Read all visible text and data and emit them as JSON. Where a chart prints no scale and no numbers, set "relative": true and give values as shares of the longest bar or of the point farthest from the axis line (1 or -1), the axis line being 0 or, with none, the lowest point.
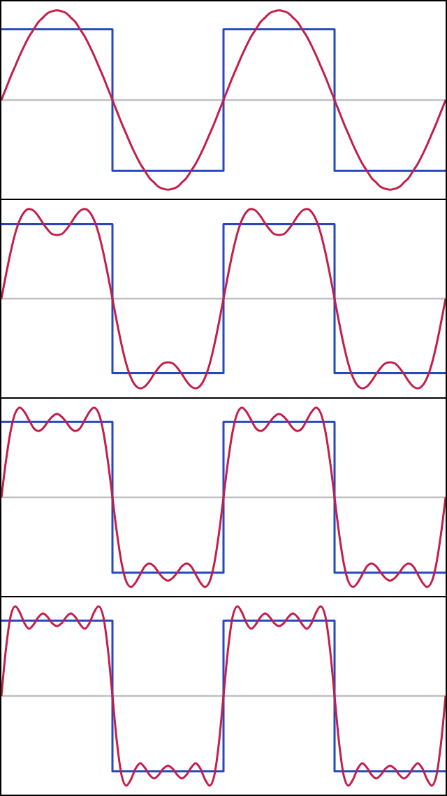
{
  "chart_data": [
    {
      "type": "line",
      "relative": true,
      "marker": "none",
      "categories": [
        null,
        null,
        null,
        null,
        null,
        null,
        null,
        null,
        null,
        null,
        null,
        null,
        null,
        null,
        null,
        null,
        null,
        null,
        null,
        null,
        null,
        null,
        null,
        null,
        null,
        null,
        null,
        null,
        null,
        null,
        null,
        null,
        null,
        null,
        null,
        null,
        null,
        null,
        null,
        null,
        null,
        null,
        null,
        null,
        null,
        null,
        null,
        null,
        null,
        null,
        null,
        null,
        null,
        null,
        null,
        null,
        null,
        null,
        null,
        null,
        null,
        null,
        null,
        null,
        null,
        null,
        null,
        null,
        null,
        null,
        null,
        null,
        null,
        null,
        null,
        null,
        null,
        null,
        null,
        null,
        null,
        null,
        null,
        null,
        null,
        null,
        null,
        null,
        null,
        null,
        null,
        null,
        null,
        null,
        null,
        null,
        null
      ],
      "ref_lines": [
        {
          "axis": "y",
          "value": 0,
          "color": "#c0c0c0"
        }
      ],
      "series": [
        {
          "type": "step",
          "color": "#2547c0",
          "values": [
            0.79,
            0.79,
            0.79,
            0.79,
            0.79,
            0.79,
            0.79,
            0.79,
            0.79,
            0.79,
            0.79,
            0.79,
            0.79,
            0.79,
            0.79,
            0.79,
            0.79,
            0.79,
            0.79,
            0.79,
            0.79,
            0.79,
            0.79,
            0.79,
            -0.79,
            -0.79,
            -0.79,
            -0.79,
            -0.79,
            -0.79,
            -0.79,
            -0.79,
            -0.79,
            -0.79,
            -0.79,
            -0.79,
            -0.79,
            -0.79,
            -0.79,
            -0.79,
            -0.79,
            -0.79,
            -0.79,
            -0.79,
            -0.79,
            -0.79,
            -0.79,
            -0.79,
            0.79,
            0.79,
            0.79,
            0.79,
            0.79,
            0.79,
            0.79,
            0.79,
            0.79,
            0.79,
            0.79,
            0.79,
            0.79,
            0.79,
            0.79,
            0.79,
            0.79,
            0.79,
            0.79,
            0.79,
            0.79,
            0.79,
            0.79,
            0.79,
            -0.79,
            -0.79,
            -0.79,
            -0.79,
            -0.79,
            -0.79,
            -0.79,
            -0.79,
            -0.79,
            -0.79,
            -0.79,
            -0.79,
            -0.79,
            -0.79,
            -0.79,
            -0.79,
            -0.79,
            -0.79,
            -0.79,
            -0.79,
            -0.79,
            -0.79,
            -0.79,
            -0.79,
            -0.79
          ]
        },
        {
          "type": "line",
          "color": "#c41e4a",
          "values": [
            0,
            0.13,
            0.26,
            0.38,
            0.5,
            0.61,
            0.71,
            0.79,
            0.87,
            0.92,
            0.97,
            0.99,
            1,
            0.99,
            0.97,
            0.92,
            0.87,
            0.79,
            0.71,
            0.61,
            0.5,
            0.38,
            0.26,
            0.13,
            0,
            -0.13,
            -0.26,
            -0.38,
            -0.5,
            -0.61,
            -0.71,
            -0.79,
            -0.87,
            -0.92,
            -0.97,
            -0.99,
            -1,
            -0.99,
            -0.97,
            -0.92,
            -0.87,
            -0.79,
            -0.71,
            -0.61,
            -0.5,
            -0.38,
            -0.26,
            -0.13,
            0,
            0.13,
            0.26,
            0.38,
            0.5,
            0.61,
            0.71,
            0.79,
            0.87,
            0.92,
            0.97,
            0.99,
            1,
            0.99,
            0.97,
            0.92,
            0.87,
            0.79,
            0.71,
            0.61,
            0.5,
            0.38,
            0.26,
            0.13,
            0,
            -0.13,
            -0.26,
            -0.38,
            -0.5,
            -0.61,
            -0.71,
            -0.79,
            -0.87,
            -0.92,
            -0.97,
            -0.99,
            -1,
            -0.99,
            -0.97,
            -0.92,
            -0.87,
            -0.79,
            -0.71,
            -0.61,
            -0.5,
            -0.38,
            -0.26,
            -0.13,
            0
          ]
        }
      ]
    },
    {
      "type": "line",
      "relative": true,
      "marker": "none",
      "categories": [
        null,
        null,
        null,
        null,
        null,
        null,
        null,
        null,
        null,
        null,
        null,
        null,
        null,
        null,
        null,
        null,
        null,
        null,
        null,
        null,
        null,
        null,
        null,
        null,
        null,
        null,
        null,
        null,
        null,
        null,
        null,
        null,
        null,
        null,
        null,
        null,
        null,
        null,
        null,
        null,
        null,
        null,
        null,
        null,
        null,
        null,
        null,
        null,
        null,
        null,
        null,
        null,
        null,
        null,
        null,
        null,
        null,
        null,
        null,
        null,
        null,
        null,
        null,
        null,
        null,
        null,
        null,
        null,
        null,
        null,
        null,
        null,
        null,
        null,
        null,
        null,
        null,
        null,
        null,
        null,
        null,
        null,
        null,
        null,
        null,
        null,
        null,
        null,
        null,
        null,
        null,
        null,
        null,
        null,
        null,
        null,
        null
      ],
      "ref_lines": [
        {
          "axis": "y",
          "value": 0,
          "color": "#c0c0c0"
        }
      ],
      "series": [
        {
          "type": "step",
          "color": "#2547c0",
          "values": [
            0.83,
            0.83,
            0.83,
            0.83,
            0.83,
            0.83,
            0.83,
            0.83,
            0.83,
            0.83,
            0.83,
            0.83,
            0.83,
            0.83,
            0.83,
            0.83,
            0.83,
            0.83,
            0.83,
            0.83,
            0.83,
            0.83,
            0.83,
            0.83,
            -0.83,
            -0.83,
            -0.83,
            -0.83,
            -0.83,
            -0.83,
            -0.83,
            -0.83,
            -0.83,
            -0.83,
            -0.83,
            -0.83,
            -0.83,
            -0.83,
            -0.83,
            -0.83,
            -0.83,
            -0.83,
            -0.83,
            -0.83,
            -0.83,
            -0.83,
            -0.83,
            -0.83,
            0.83,
            0.83,
            0.83,
            0.83,
            0.83,
            0.83,
            0.83,
            0.83,
            0.83,
            0.83,
            0.83,
            0.83,
            0.83,
            0.83,
            0.83,
            0.83,
            0.83,
            0.83,
            0.83,
            0.83,
            0.83,
            0.83,
            0.83,
            0.83,
            -0.83,
            -0.83,
            -0.83,
            -0.83,
            -0.83,
            -0.83,
            -0.83,
            -0.83,
            -0.83,
            -0.83,
            -0.83,
            -0.83,
            -0.83,
            -0.83,
            -0.83,
            -0.83,
            -0.83,
            -0.83,
            -0.83,
            -0.83,
            -0.83,
            -0.83,
            -0.83,
            -0.83,
            -0.83
          ]
        },
        {
          "type": "line",
          "color": "#c41e4a",
          "values": [
            0,
            0.27,
            0.52,
            0.73,
            0.88,
            0.97,
            1,
            0.98,
            0.92,
            0.84,
            0.77,
            0.72,
            0.71,
            0.72,
            0.77,
            0.84,
            0.92,
            0.98,
            1,
            0.97,
            0.88,
            0.73,
            0.52,
            0.27,
            0,
            -0.27,
            -0.52,
            -0.73,
            -0.88,
            -0.97,
            -1,
            -0.98,
            -0.92,
            -0.84,
            -0.77,
            -0.72,
            -0.71,
            -0.72,
            -0.77,
            -0.84,
            -0.92,
            -0.98,
            -1,
            -0.97,
            -0.88,
            -0.73,
            -0.52,
            -0.27,
            0,
            0.27,
            0.52,
            0.73,
            0.88,
            0.97,
            1,
            0.98,
            0.92,
            0.84,
            0.77,
            0.72,
            0.71,
            0.72,
            0.77,
            0.84,
            0.92,
            0.98,
            1,
            0.97,
            0.88,
            0.73,
            0.52,
            0.27,
            0,
            -0.27,
            -0.52,
            -0.73,
            -0.88,
            -0.97,
            -1,
            -0.98,
            -0.92,
            -0.84,
            -0.77,
            -0.72,
            -0.71,
            -0.72,
            -0.77,
            -0.84,
            -0.92,
            -0.98,
            -1,
            -0.97,
            -0.88,
            -0.73,
            -0.52,
            -0.27,
            0
          ]
        }
      ]
    },
    {
      "type": "line",
      "relative": true,
      "marker": "none",
      "categories": [
        null,
        null,
        null,
        null,
        null,
        null,
        null,
        null,
        null,
        null,
        null,
        null,
        null,
        null,
        null,
        null,
        null,
        null,
        null,
        null,
        null,
        null,
        null,
        null,
        null,
        null,
        null,
        null,
        null,
        null,
        null,
        null,
        null,
        null,
        null,
        null,
        null,
        null,
        null,
        null,
        null,
        null,
        null,
        null,
        null,
        null,
        null,
        null,
        null,
        null,
        null,
        null,
        null,
        null,
        null,
        null,
        null,
        null,
        null,
        null,
        null,
        null,
        null,
        null,
        null,
        null,
        null,
        null,
        null,
        null,
        null,
        null,
        null,
        null,
        null,
        null,
        null,
        null,
        null,
        null,
        null,
        null,
        null,
        null,
        null,
        null,
        null,
        null,
        null,
        null,
        null,
        null,
        null,
        null,
        null,
        null,
        null
      ],
      "ref_lines": [
        {
          "axis": "y",
          "value": 0,
          "color": "#c0c0c0"
        }
      ],
      "series": [
        {
          "type": "step",
          "color": "#2547c0",
          "values": [
            0.84,
            0.84,
            0.84,
            0.84,
            0.84,
            0.84,
            0.84,
            0.84,
            0.84,
            0.84,
            0.84,
            0.84,
            0.84,
            0.84,
            0.84,
            0.84,
            0.84,
            0.84,
            0.84,
            0.84,
            0.84,
            0.84,
            0.84,
            0.84,
            -0.84,
            -0.84,
            -0.84,
            -0.84,
            -0.84,
            -0.84,
            -0.84,
            -0.84,
            -0.84,
            -0.84,
            -0.84,
            -0.84,
            -0.84,
            -0.84,
            -0.84,
            -0.84,
            -0.84,
            -0.84,
            -0.84,
            -0.84,
            -0.84,
            -0.84,
            -0.84,
            -0.84,
            0.84,
            0.84,
            0.84,
            0.84,
            0.84,
            0.84,
            0.84,
            0.84,
            0.84,
            0.84,
            0.84,
            0.84,
            0.84,
            0.84,
            0.84,
            0.84,
            0.84,
            0.84,
            0.84,
            0.84,
            0.84,
            0.84,
            0.84,
            0.84,
            -0.84,
            -0.84,
            -0.84,
            -0.84,
            -0.84,
            -0.84,
            -0.84,
            -0.84,
            -0.84,
            -0.84,
            -0.84,
            -0.84,
            -0.84,
            -0.84,
            -0.84,
            -0.84,
            -0.84,
            -0.84,
            -0.84,
            -0.84,
            -0.84,
            -0.84,
            -0.84,
            -0.84,
            -0.84
          ]
        },
        {
          "type": "line",
          "color": "#c41e4a",
          "values": [
            0,
            0.41,
            0.74,
            0.94,
            1,
            0.95,
            0.86,
            0.77,
            0.74,
            0.77,
            0.84,
            0.9,
            0.93,
            0.9,
            0.84,
            0.77,
            0.74,
            0.77,
            0.86,
            0.95,
            1,
            0.94,
            0.74,
            0.41,
            0,
            -0.41,
            -0.74,
            -0.94,
            -1,
            -0.95,
            -0.86,
            -0.77,
            -0.74,
            -0.77,
            -0.84,
            -0.9,
            -0.93,
            -0.9,
            -0.84,
            -0.77,
            -0.74,
            -0.77,
            -0.86,
            -0.95,
            -1,
            -0.94,
            -0.74,
            -0.41,
            0,
            0.41,
            0.74,
            0.94,
            1,
            0.95,
            0.86,
            0.77,
            0.74,
            0.77,
            0.84,
            0.9,
            0.93,
            0.9,
            0.84,
            0.77,
            0.74,
            0.77,
            0.86,
            0.95,
            1,
            0.94,
            0.74,
            0.41,
            0,
            -0.41,
            -0.74,
            -0.94,
            -1,
            -0.95,
            -0.86,
            -0.77,
            -0.74,
            -0.77,
            -0.84,
            -0.9,
            -0.93,
            -0.9,
            -0.84,
            -0.77,
            -0.74,
            -0.77,
            -0.86,
            -0.95,
            -1,
            -0.94,
            -0.74,
            -0.41,
            0
          ]
        }
      ]
    },
    {
      "type": "line",
      "relative": true,
      "marker": "none",
      "categories": [
        null,
        null,
        null,
        null,
        null,
        null,
        null,
        null,
        null,
        null,
        null,
        null,
        null,
        null,
        null,
        null,
        null,
        null,
        null,
        null,
        null,
        null,
        null,
        null,
        null,
        null,
        null,
        null,
        null,
        null,
        null,
        null,
        null,
        null,
        null,
        null,
        null,
        null,
        null,
        null,
        null,
        null,
        null,
        null,
        null,
        null,
        null,
        null,
        null,
        null,
        null,
        null,
        null,
        null,
        null,
        null,
        null,
        null,
        null,
        null,
        null,
        null,
        null,
        null,
        null,
        null,
        null,
        null,
        null,
        null,
        null,
        null,
        null,
        null,
        null,
        null,
        null,
        null,
        null,
        null,
        null,
        null,
        null,
        null,
        null,
        null,
        null,
        null,
        null,
        null,
        null,
        null,
        null,
        null,
        null,
        null,
        null
      ],
      "ref_lines": [
        {
          "axis": "y",
          "value": 0,
          "color": "#c0c0c0"
        }
      ],
      "series": [
        {
          "type": "step",
          "color": "#2547c0",
          "values": [
            0.84,
            0.84,
            0.84,
            0.84,
            0.84,
            0.84,
            0.84,
            0.84,
            0.84,
            0.84,
            0.84,
            0.84,
            0.84,
            0.84,
            0.84,
            0.84,
            0.84,
            0.84,
            0.84,
            0.84,
            0.84,
            0.84,
            0.84,
            0.84,
            -0.84,
            -0.84,
            -0.84,
            -0.84,
            -0.84,
            -0.84,
            -0.84,
            -0.84,
            -0.84,
            -0.84,
            -0.84,
            -0.84,
            -0.84,
            -0.84,
            -0.84,
            -0.84,
            -0.84,
            -0.84,
            -0.84,
            -0.84,
            -0.84,
            -0.84,
            -0.84,
            -0.84,
            0.84,
            0.84,
            0.84,
            0.84,
            0.84,
            0.84,
            0.84,
            0.84,
            0.84,
            0.84,
            0.84,
            0.84,
            0.84,
            0.84,
            0.84,
            0.84,
            0.84,
            0.84,
            0.84,
            0.84,
            0.84,
            0.84,
            0.84,
            0.84,
            -0.84,
            -0.84,
            -0.84,
            -0.84,
            -0.84,
            -0.84,
            -0.84,
            -0.84,
            -0.84,
            -0.84,
            -0.84,
            -0.84,
            -0.84,
            -0.84,
            -0.84,
            -0.84,
            -0.84,
            -0.84,
            -0.84,
            -0.84,
            -0.84,
            -0.84,
            -0.84,
            -0.84,
            -0.84
          ]
        },
        {
          "type": "line",
          "color": "#c41e4a",
          "values": [
            0,
            0.53,
            0.89,
            1,
            0.93,
            0.81,
            0.75,
            0.8,
            0.88,
            0.92,
            0.88,
            0.81,
            0.78,
            0.81,
            0.88,
            0.92,
            0.88,
            0.8,
            0.75,
            0.81,
            0.93,
            1,
            0.89,
            0.53,
            0,
            -0.53,
            -0.89,
            -1,
            -0.93,
            -0.81,
            -0.75,
            -0.8,
            -0.88,
            -0.92,
            -0.88,
            -0.81,
            -0.78,
            -0.81,
            -0.88,
            -0.92,
            -0.88,
            -0.8,
            -0.75,
            -0.81,
            -0.93,
            -1,
            -0.89,
            -0.53,
            0,
            0.53,
            0.89,
            1,
            0.93,
            0.81,
            0.75,
            0.8,
            0.88,
            0.92,
            0.88,
            0.81,
            0.78,
            0.81,
            0.88,
            0.92,
            0.88,
            0.8,
            0.75,
            0.81,
            0.93,
            1,
            0.89,
            0.53,
            0,
            -0.53,
            -0.89,
            -1,
            -0.93,
            -0.81,
            -0.75,
            -0.8,
            -0.88,
            -0.92,
            -0.88,
            -0.81,
            -0.78,
            -0.81,
            -0.88,
            -0.92,
            -0.88,
            -0.8,
            -0.75,
            -0.81,
            -0.93,
            -1,
            -0.89,
            -0.53,
            0
          ]
        }
      ]
    }
  ]
}
